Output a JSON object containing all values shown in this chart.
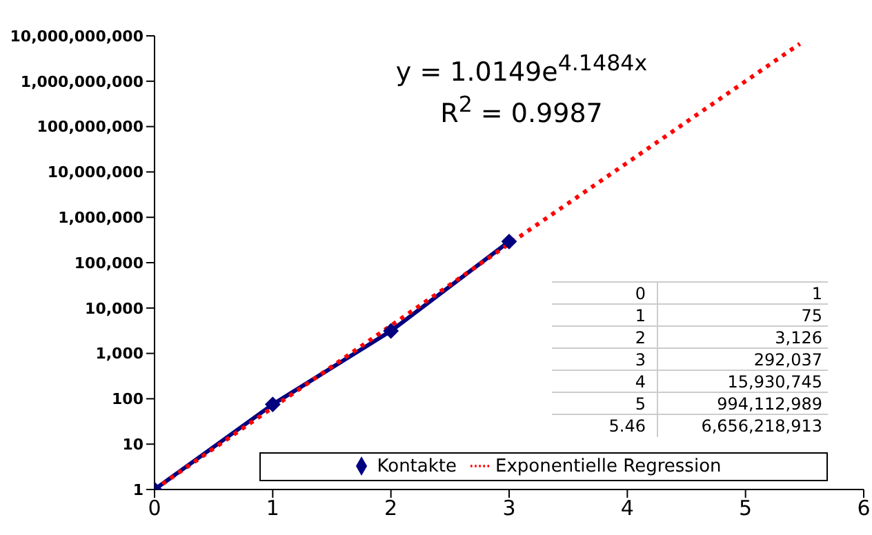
{
  "chart_data": {
    "type": "line",
    "series": [
      {
        "name": "Kontakte",
        "color": "#000080",
        "x": [
          0,
          1,
          2,
          3
        ],
        "values": [
          1,
          75,
          3126,
          292037
        ],
        "marker": "diamond",
        "line_style": "solid"
      },
      {
        "name": "Exponentielle Regression",
        "color": "#ff0000",
        "x": [
          0,
          1,
          2,
          3,
          4,
          5,
          5.46
        ],
        "values": [
          1,
          64,
          4100,
          260000,
          16000000,
          1000000000,
          6700000000
        ],
        "marker": "none",
        "line_style": "dotted"
      }
    ],
    "xlim": [
      0,
      6
    ],
    "xticks": [
      0,
      1,
      2,
      3,
      4,
      5,
      6
    ],
    "log": "y",
    "ylim": [
      1,
      10000000000
    ],
    "yticks": [
      {
        "value": 1,
        "label": "1"
      },
      {
        "value": 10,
        "label": "10"
      },
      {
        "value": 100,
        "label": "100"
      },
      {
        "value": 1000,
        "label": "1,000"
      },
      {
        "value": 10000,
        "label": "10,000"
      },
      {
        "value": 100000,
        "label": "100,000"
      },
      {
        "value": 1000000,
        "label": "1,000,000"
      },
      {
        "value": 10000000,
        "label": "10,000,000"
      },
      {
        "value": 100000000,
        "label": "100,000,000"
      },
      {
        "value": 1000000000,
        "label": "1,000,000,000"
      },
      {
        "value": 10000000000,
        "label": "10,000,000,000"
      }
    ],
    "grid": false,
    "legend": "bottom",
    "annotations": [
      "y = 1.0149e$^{4.1484x}$",
      "R$^{2}$ = 0.9987",
      "0",
      "1",
      "1",
      "75",
      "2",
      "3,126",
      "3",
      "292,037",
      "4",
      "15,930,745",
      "5",
      "994,112,989",
      "5.46",
      "6,656,218,913"
    ]
  }
}
